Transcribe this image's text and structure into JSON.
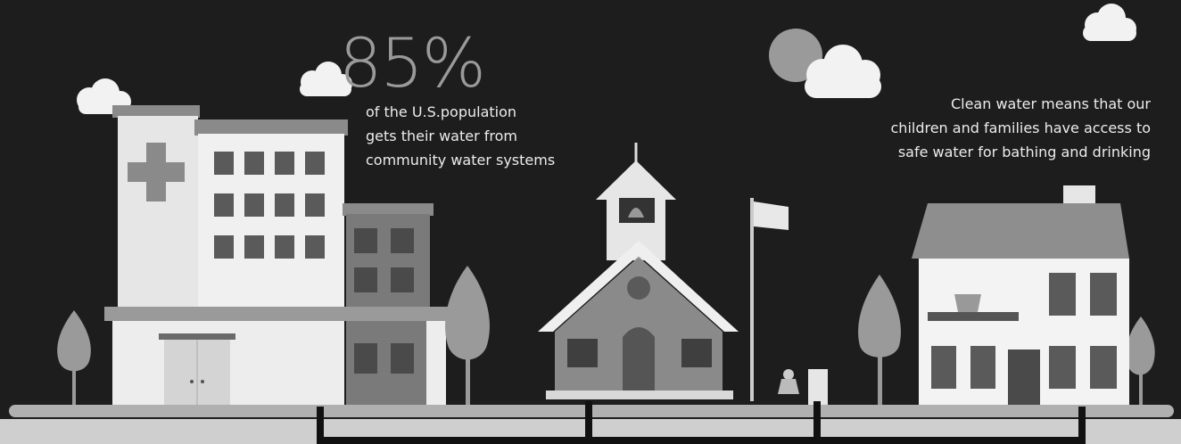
{
  "stat": {
    "value": "85%",
    "lines": [
      "of the U.S.population",
      "gets their water from",
      "community water systems"
    ]
  },
  "message": {
    "lines": [
      "Clean water means that our",
      "children and families have access to",
      "safe water for bathing and drinking"
    ]
  }
}
